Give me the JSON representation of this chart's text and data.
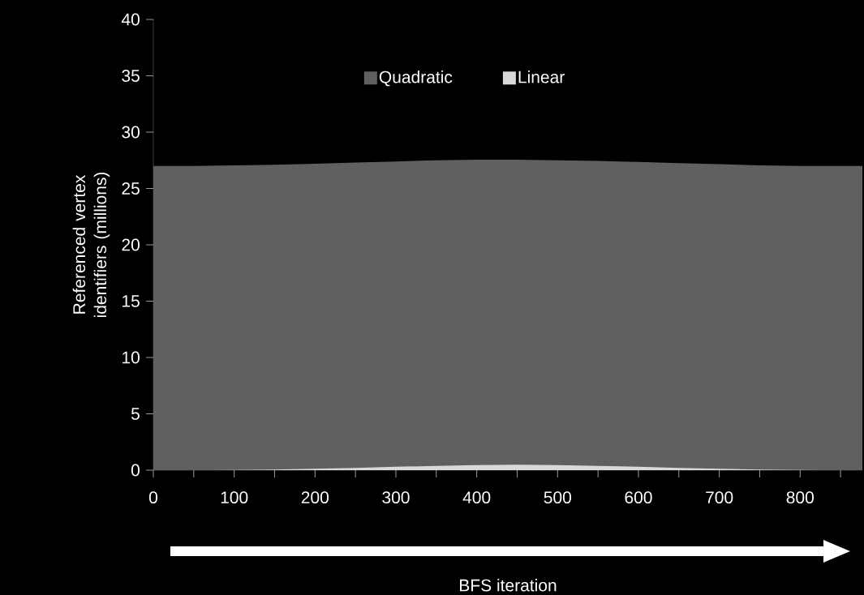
{
  "chart_data": {
    "type": "area",
    "xlabel": "BFS iteration",
    "ylabel": "Referenced vertex identifiers (millions)",
    "x": [
      0,
      50,
      100,
      150,
      200,
      250,
      300,
      350,
      400,
      450,
      500,
      550,
      600,
      650,
      700,
      750,
      800,
      850,
      877
    ],
    "series": [
      {
        "name": "Quadratic",
        "color": "#606060",
        "values": [
          27.0,
          27.0,
          27.05,
          27.1,
          27.2,
          27.3,
          27.4,
          27.5,
          27.55,
          27.55,
          27.5,
          27.45,
          27.35,
          27.25,
          27.15,
          27.05,
          27.0,
          27.0,
          27.0
        ]
      },
      {
        "name": "Linear",
        "color": "#d9d9d9",
        "values": [
          0,
          0,
          0.02,
          0.06,
          0.12,
          0.2,
          0.3,
          0.38,
          0.45,
          0.48,
          0.45,
          0.38,
          0.3,
          0.2,
          0.12,
          0.06,
          0.02,
          0,
          0
        ]
      }
    ],
    "xlim": [
      0,
      877
    ],
    "ylim": [
      0,
      40
    ],
    "xticks": [
      0,
      {
        "value": 50,
        "label": null
      },
      100,
      {
        "value": 150,
        "label": null
      },
      200,
      {
        "value": 250,
        "label": null
      },
      300,
      {
        "value": 350,
        "label": null
      },
      400,
      {
        "value": 450,
        "label": null
      },
      500,
      {
        "value": 550,
        "label": null
      },
      600,
      {
        "value": 650,
        "label": null
      },
      700,
      {
        "value": 750,
        "label": null
      },
      800,
      {
        "value": 850,
        "label": null
      }
    ],
    "yticks": [
      0,
      5,
      10,
      15,
      20,
      25,
      30,
      35,
      40
    ],
    "legend": "top",
    "grid": false
  }
}
